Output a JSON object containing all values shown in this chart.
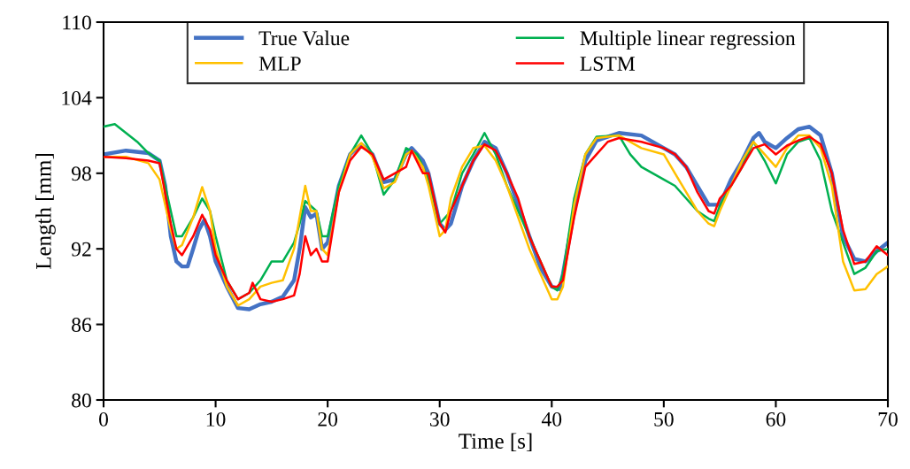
{
  "chart_data": {
    "type": "line",
    "xlabel": "Time [s]",
    "ylabel": "Length [mm]",
    "xlim": [
      0,
      70
    ],
    "xticks": [
      0,
      10,
      20,
      30,
      40,
      50,
      60,
      70
    ],
    "ylim": [
      80,
      110
    ],
    "yticks": [
      80,
      86,
      92,
      98,
      104,
      110
    ],
    "grid": false,
    "legend": "top",
    "marker": "none",
    "line_style": "solid",
    "series": [
      {
        "name": "True Value",
        "color": "#4472c4",
        "x": [
          0,
          2,
          4,
          5,
          5.5,
          6,
          6.5,
          7,
          7.5,
          8,
          8.5,
          9,
          9.5,
          10,
          11,
          12,
          13,
          14,
          15,
          16,
          17,
          17.5,
          18,
          18.5,
          19,
          19.5,
          20,
          21,
          22,
          23,
          24,
          25,
          26,
          27,
          27.5,
          28.5,
          29,
          30,
          30.5,
          31,
          32,
          33,
          34,
          35,
          36,
          37,
          38,
          39,
          40,
          40.7,
          41,
          42,
          43,
          44,
          46,
          48,
          50,
          51,
          52,
          53,
          54,
          55,
          56,
          57,
          58,
          58.5,
          59,
          60,
          61,
          62,
          63,
          64,
          65,
          66,
          67,
          68,
          69,
          70
        ],
        "values": [
          99.5,
          99.8,
          99.6,
          99,
          97,
          93,
          91,
          90.6,
          90.6,
          92,
          93.5,
          94.3,
          93,
          91,
          89,
          87.3,
          87.2,
          87.6,
          87.8,
          88.2,
          89.5,
          92,
          95.3,
          94.5,
          94.8,
          92,
          92.5,
          97,
          99.5,
          100.3,
          99.5,
          97.3,
          97.5,
          99.5,
          100,
          99,
          98,
          94,
          93.5,
          94,
          97,
          99,
          100.5,
          100,
          98,
          95.5,
          93,
          90.5,
          89,
          88.8,
          90,
          95,
          99,
          100.6,
          101.2,
          101,
          100,
          99.5,
          98.5,
          97,
          95.5,
          95.5,
          97.5,
          99,
          100.8,
          101.2,
          100.5,
          100,
          100.8,
          101.5,
          101.7,
          101,
          98,
          93,
          91.2,
          91,
          91.8,
          92.5
        ]
      },
      {
        "name": "Multiple linear regression",
        "color": "#00b050",
        "x": [
          0,
          1,
          2,
          3,
          4,
          5,
          6,
          6.5,
          7,
          8,
          8.8,
          9.5,
          10,
          11,
          12,
          13,
          14,
          15,
          16,
          17,
          17.5,
          18,
          19,
          19.5,
          20,
          21,
          22,
          23,
          24,
          25,
          26,
          27,
          28,
          29,
          30,
          31,
          32,
          33,
          34,
          35,
          36,
          37,
          38,
          39,
          40,
          40.5,
          41,
          42,
          43,
          44,
          46,
          47,
          48,
          50,
          51,
          52,
          53,
          54,
          54.5,
          55,
          56,
          57,
          58,
          59,
          60,
          61,
          62,
          63,
          64,
          65,
          66,
          67,
          68,
          69,
          70
        ],
        "values": [
          101.7,
          101.9,
          101.2,
          100.5,
          99.6,
          99,
          95,
          93,
          93,
          94.5,
          96,
          95,
          93,
          89.5,
          88,
          88.5,
          89.5,
          91,
          91,
          92.5,
          94,
          95.8,
          95,
          93,
          93,
          97,
          99.5,
          101,
          99.5,
          96.3,
          97.5,
          100,
          99.5,
          97.5,
          94,
          95,
          98,
          99.5,
          101.2,
          99.5,
          97,
          95,
          93,
          91,
          89,
          88.7,
          90,
          96,
          99.5,
          100.9,
          101,
          99.5,
          98.5,
          97.5,
          97,
          96,
          95,
          94.4,
          94.2,
          95.4,
          97,
          98.5,
          100.5,
          99,
          97.2,
          99.5,
          100.5,
          100.8,
          99,
          95,
          92.5,
          90,
          90.5,
          91.8,
          92
        ]
      },
      {
        "name": "MLP",
        "color": "#ffc000",
        "x": [
          0,
          2,
          4,
          5,
          6,
          6.5,
          7,
          8,
          8.8,
          9.5,
          10,
          11,
          12,
          13,
          14,
          15,
          16,
          17,
          18,
          18.5,
          19,
          19.5,
          20,
          21,
          22,
          23,
          24,
          25,
          26,
          27,
          27.5,
          28.5,
          29,
          30,
          30.5,
          31,
          32,
          33,
          34,
          35,
          36,
          37,
          38,
          39,
          40,
          40.5,
          41,
          42,
          43,
          44,
          46,
          48,
          50,
          51,
          52,
          53,
          54,
          54.5,
          55,
          56,
          57,
          58,
          59,
          60,
          61,
          62,
          63,
          64,
          65,
          66,
          67,
          68,
          69,
          70
        ],
        "values": [
          99.3,
          99.3,
          98.8,
          97.5,
          93.5,
          92,
          92.3,
          94.5,
          96.9,
          95,
          92,
          89,
          87.5,
          88,
          89,
          89.3,
          89.5,
          92,
          97,
          95,
          95,
          92,
          91.5,
          96.5,
          99.5,
          100.4,
          99.3,
          96.8,
          97.3,
          99.5,
          99.8,
          98.5,
          97,
          93,
          93.5,
          96,
          98.5,
          100,
          100.2,
          99,
          97,
          94.5,
          92,
          90,
          88,
          88,
          89,
          95.5,
          99.5,
          100.8,
          101,
          100,
          99.5,
          98,
          96.5,
          95,
          94,
          93.8,
          95,
          97,
          99,
          100.5,
          99.5,
          98.5,
          100,
          101,
          101,
          100,
          97,
          91,
          88.7,
          88.8,
          90,
          90.6
        ]
      },
      {
        "name": "LSTM",
        "color": "#ff0000",
        "x": [
          0,
          2,
          4,
          5,
          6,
          6.5,
          7,
          8,
          8.8,
          9.5,
          10,
          11,
          12,
          13,
          13.3,
          14,
          15,
          16,
          17,
          17.5,
          18,
          18.5,
          19,
          19.5,
          20,
          21,
          22,
          23,
          24,
          25,
          26,
          27,
          27.5,
          28.5,
          29,
          30,
          30.5,
          31,
          32,
          33,
          34,
          35,
          36,
          37,
          38,
          39,
          40,
          40.5,
          41,
          42,
          43,
          44,
          45,
          46,
          48,
          50,
          51,
          52,
          53,
          54,
          54.5,
          55,
          56,
          57,
          58,
          59,
          60,
          61,
          62,
          63,
          64,
          65,
          66,
          67,
          68,
          69,
          70
        ],
        "values": [
          99.3,
          99.2,
          99,
          98.8,
          94,
          92,
          91.5,
          93,
          94.7,
          93.5,
          91.5,
          89.5,
          88,
          88.5,
          89.3,
          88,
          87.8,
          88,
          88.3,
          90,
          93,
          91.5,
          92,
          91,
          91,
          96.5,
          99,
          100.1,
          99.5,
          97.5,
          98,
          98.5,
          99.8,
          98,
          98,
          94,
          93.3,
          95,
          97,
          99,
          100.3,
          99.8,
          98,
          96,
          93,
          91,
          89,
          89,
          89.5,
          94.5,
          98.5,
          99.5,
          100.5,
          100.8,
          100.5,
          100,
          99.5,
          98.5,
          96.5,
          95,
          94.8,
          96,
          97,
          98.5,
          100,
          100.3,
          99.5,
          100.2,
          100.6,
          100.9,
          100.3,
          98,
          93.5,
          90.8,
          91,
          92.2,
          91.5
        ]
      }
    ]
  }
}
